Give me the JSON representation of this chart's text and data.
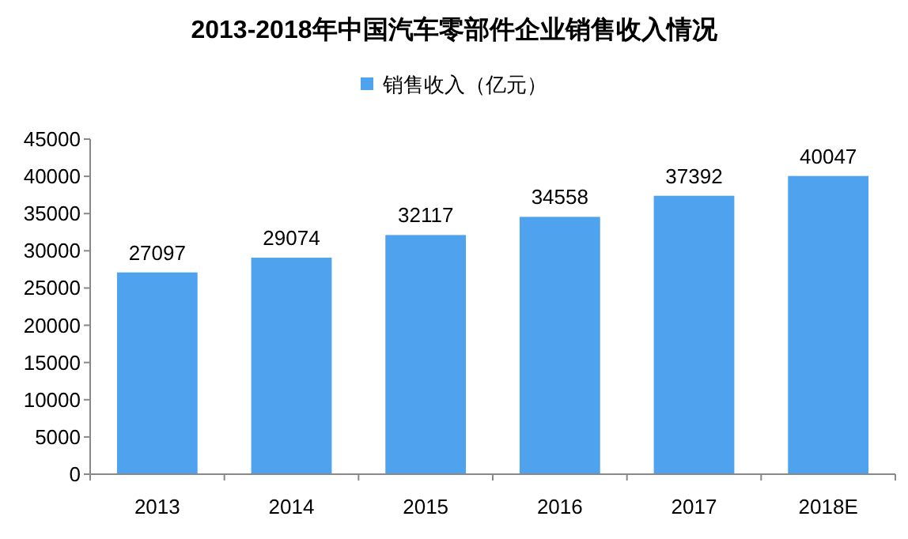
{
  "chart_data": {
    "type": "bar",
    "title": "2013-2018年中国汽车零部件企业销售收入情况",
    "categories": [
      "2013",
      "2014",
      "2015",
      "2016",
      "2017",
      "2018E"
    ],
    "series": [
      {
        "name": "销售收入（亿元）",
        "color": "#4fa3ee",
        "values": [
          27097,
          29074,
          32117,
          34558,
          37392,
          40047
        ]
      }
    ],
    "ylim": [
      0,
      45000
    ],
    "yticks": [
      0,
      5000,
      10000,
      15000,
      20000,
      25000,
      30000,
      35000,
      40000,
      45000
    ],
    "data_labels": true,
    "legend": "top",
    "grid": false
  }
}
